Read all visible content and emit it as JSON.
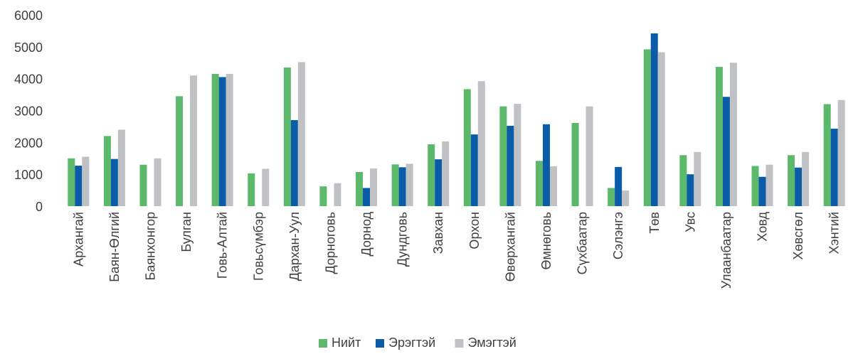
{
  "chart_data": {
    "type": "bar",
    "categories": [
      "Архангай",
      "Баян-Өлгий",
      "Баянхонгор",
      "Булган",
      "Говь-Алтай",
      "Говьсүмбэр",
      "Дархан-Уул",
      "Дорноговь",
      "Дорнод",
      "Дундговь",
      "Завхан",
      "Орхон",
      "Өвөрхангай",
      "Өмнөговь",
      "Сүхбаатар",
      "Сэлэнгэ",
      "Төв",
      "Увс",
      "Улаанбаатар",
      "Ховд",
      "Хөвсгөл",
      "Хэнтий"
    ],
    "series": [
      {
        "name": "Нийт",
        "color": "#5cb96b",
        "values": [
          1500,
          2200,
          1300,
          3450,
          4150,
          1030,
          4350,
          620,
          1070,
          1310,
          1940,
          3670,
          3130,
          1420,
          2610,
          570,
          4920,
          1600,
          4370,
          1260,
          1600,
          3200
        ]
      },
      {
        "name": "Эрэгтэй",
        "color": "#0b5ca8",
        "values": [
          1270,
          1480,
          null,
          null,
          4050,
          null,
          2700,
          null,
          570,
          1220,
          1470,
          2250,
          2520,
          2570,
          null,
          1230,
          5420,
          1000,
          3430,
          920,
          1210,
          2430
        ]
      },
      {
        "name": "Эмэгтэй",
        "color": "#bfc1c4",
        "values": [
          1550,
          2400,
          1500,
          4100,
          4150,
          1170,
          4520,
          720,
          1180,
          1330,
          2030,
          3920,
          3210,
          1250,
          3130,
          490,
          4830,
          1700,
          4500,
          1300,
          1700,
          3330
        ]
      }
    ],
    "ylim": [
      0,
      6000
    ],
    "yticks": [
      0,
      1000,
      2000,
      3000,
      4000,
      5000,
      6000
    ],
    "grid": false,
    "legend": "bottom"
  }
}
